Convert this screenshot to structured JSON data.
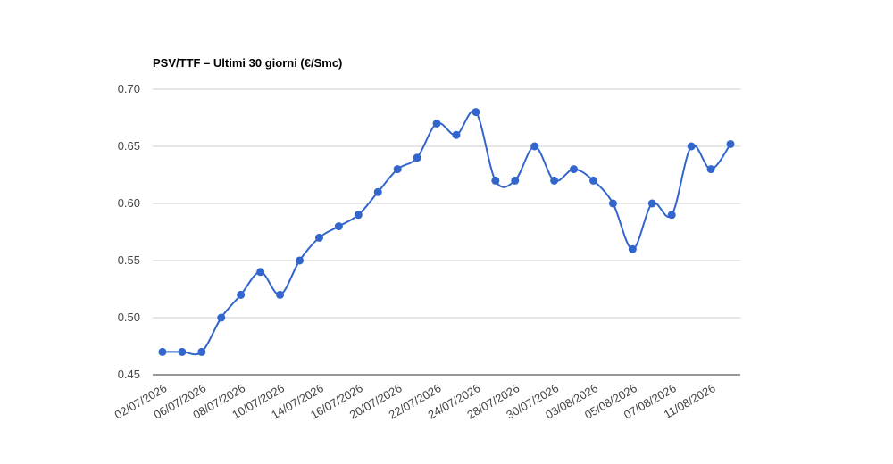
{
  "chart_data": {
    "type": "line",
    "title": "PSV/TTF – Ultimi 30 giorni (€/Smc)",
    "categories": [
      "02/07/2026",
      null,
      "06/07/2026",
      null,
      "08/07/2026",
      null,
      "10/07/2026",
      null,
      "14/07/2026",
      null,
      "16/07/2026",
      null,
      "20/07/2026",
      null,
      "22/07/2026",
      null,
      "24/07/2026",
      null,
      "28/07/2026",
      null,
      "30/07/2026",
      null,
      "03/08/2026",
      null,
      "05/08/2026",
      null,
      "07/08/2026",
      null,
      "11/08/2026",
      null
    ],
    "series": [
      {
        "name": "PSV/TTF",
        "color": "#3366cc",
        "values": [
          0.47,
          0.47,
          0.47,
          0.5,
          0.52,
          0.54,
          0.52,
          0.55,
          0.57,
          0.58,
          0.59,
          0.61,
          0.63,
          0.64,
          0.67,
          0.66,
          0.68,
          0.62,
          0.62,
          0.65,
          0.62,
          0.63,
          0.62,
          0.6,
          0.56,
          0.6,
          0.59,
          0.65,
          0.63,
          0.652
        ]
      }
    ],
    "ylim": [
      0.45,
      0.7
    ],
    "yticks": [
      0.45,
      {
        "value": 0.5,
        "label": "0.50"
      },
      0.55,
      {
        "value": 0.6,
        "label": "0.60"
      },
      0.65,
      {
        "value": 0.7,
        "label": "0.70"
      }
    ],
    "grid": true
  }
}
